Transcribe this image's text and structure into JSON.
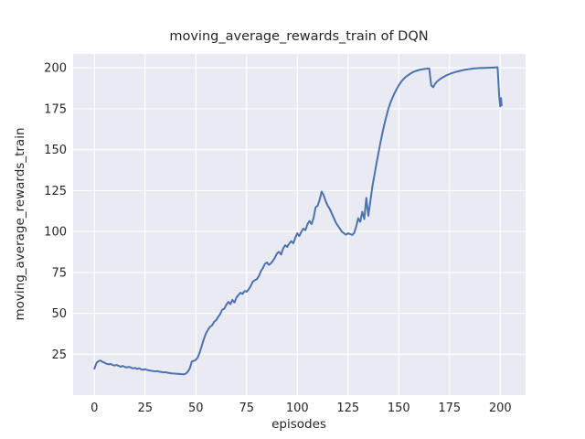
{
  "figure": {
    "background": "#ffffff"
  },
  "chart_data": {
    "type": "line",
    "title": "moving_average_rewards_train of DQN",
    "xlabel": "episodes",
    "ylabel": "moving_average_rewards_train",
    "x_ticks": [
      0,
      25,
      50,
      75,
      100,
      125,
      150,
      175,
      200
    ],
    "y_ticks": [
      25,
      50,
      75,
      100,
      125,
      150,
      175,
      200
    ],
    "xlim": [
      -10.5,
      212.5
    ],
    "ylim": [
      0,
      208.5
    ],
    "grid": true,
    "legend_position": "none",
    "style": {
      "axes_background": "#eaeaf2",
      "grid_color": "#ffffff",
      "line_color": "#4c72b0",
      "text_color": "#262626"
    },
    "series": [
      {
        "name": "moving_average_rewards_train",
        "points": [
          [
            0,
            16.2
          ],
          [
            1,
            19.6
          ],
          [
            2,
            20.8
          ],
          [
            3,
            21.1
          ],
          [
            4,
            20.3
          ],
          [
            5,
            19.8
          ],
          [
            6,
            19.1
          ],
          [
            7,
            18.8
          ],
          [
            8,
            19.1
          ],
          [
            9,
            18.4
          ],
          [
            10,
            18.1
          ],
          [
            11,
            18.4
          ],
          [
            12,
            17.8
          ],
          [
            13,
            17.4
          ],
          [
            14,
            17.8
          ],
          [
            15,
            17.2
          ],
          [
            16,
            16.9
          ],
          [
            17,
            17.3
          ],
          [
            18,
            16.8
          ],
          [
            19,
            16.3
          ],
          [
            20,
            16.6
          ],
          [
            21,
            16.0
          ],
          [
            22,
            16.4
          ],
          [
            23,
            15.8
          ],
          [
            24,
            15.5
          ],
          [
            25,
            15.8
          ],
          [
            26,
            15.3
          ],
          [
            27,
            15.1
          ],
          [
            28,
            14.9
          ],
          [
            29,
            14.7
          ],
          [
            30,
            14.5
          ],
          [
            31,
            14.7
          ],
          [
            32,
            14.3
          ],
          [
            33,
            14.1
          ],
          [
            34,
            13.9
          ],
          [
            35,
            14.0
          ],
          [
            36,
            13.7
          ],
          [
            37,
            13.5
          ],
          [
            38,
            13.3
          ],
          [
            39,
            13.2
          ],
          [
            40,
            13.1
          ],
          [
            41,
            13.0
          ],
          [
            42,
            12.9
          ],
          [
            43,
            12.8
          ],
          [
            44,
            12.7
          ],
          [
            45,
            13.1
          ],
          [
            46,
            14.3
          ],
          [
            47,
            16.3
          ],
          [
            48,
            20.5
          ],
          [
            49,
            20.9
          ],
          [
            50,
            21.6
          ],
          [
            51,
            23.2
          ],
          [
            52,
            26.5
          ],
          [
            53,
            30.5
          ],
          [
            54,
            34.5
          ],
          [
            55,
            37.8
          ],
          [
            56,
            40.0
          ],
          [
            57,
            41.8
          ],
          [
            58,
            42.6
          ],
          [
            59,
            44.8
          ],
          [
            60,
            45.8
          ],
          [
            61,
            47.8
          ],
          [
            62,
            49.6
          ],
          [
            63,
            52.2
          ],
          [
            64,
            52.8
          ],
          [
            65,
            55.2
          ],
          [
            66,
            57.0
          ],
          [
            67,
            55.6
          ],
          [
            68,
            58.2
          ],
          [
            69,
            56.6
          ],
          [
            70,
            59.6
          ],
          [
            71,
            61.2
          ],
          [
            72,
            62.6
          ],
          [
            73,
            61.8
          ],
          [
            74,
            63.6
          ],
          [
            75,
            63.2
          ],
          [
            76,
            64.6
          ],
          [
            77,
            66.6
          ],
          [
            78,
            69.2
          ],
          [
            79,
            70.2
          ],
          [
            80,
            70.8
          ],
          [
            81,
            72.6
          ],
          [
            82,
            75.6
          ],
          [
            83,
            77.6
          ],
          [
            84,
            80.1
          ],
          [
            85,
            81.1
          ],
          [
            86,
            79.6
          ],
          [
            87,
            80.6
          ],
          [
            88,
            82.1
          ],
          [
            89,
            84.1
          ],
          [
            90,
            86.6
          ],
          [
            91,
            87.6
          ],
          [
            92,
            85.9
          ],
          [
            93,
            89.6
          ],
          [
            94,
            91.6
          ],
          [
            95,
            90.6
          ],
          [
            96,
            92.6
          ],
          [
            97,
            94.1
          ],
          [
            98,
            92.8
          ],
          [
            99,
            96.1
          ],
          [
            100,
            98.9
          ],
          [
            101,
            97.2
          ],
          [
            102,
            99.9
          ],
          [
            103,
            101.7
          ],
          [
            104,
            100.8
          ],
          [
            105,
            104.5
          ],
          [
            106,
            106.4
          ],
          [
            107,
            104.5
          ],
          [
            108,
            108.2
          ],
          [
            109,
            114.8
          ],
          [
            110,
            115.7
          ],
          [
            111,
            119.4
          ],
          [
            112,
            124.4
          ],
          [
            113,
            122.1
          ],
          [
            114,
            118.4
          ],
          [
            115,
            115.7
          ],
          [
            116,
            113.8
          ],
          [
            117,
            111.0
          ],
          [
            118,
            108.2
          ],
          [
            119,
            105.4
          ],
          [
            120,
            103.5
          ],
          [
            121,
            101.7
          ],
          [
            122,
            99.8
          ],
          [
            123,
            98.9
          ],
          [
            124,
            98.0
          ],
          [
            125,
            98.9
          ],
          [
            126,
            98.4
          ],
          [
            127,
            97.9
          ],
          [
            128,
            99.0
          ],
          [
            129,
            103.0
          ],
          [
            130,
            108.1
          ],
          [
            131,
            105.9
          ],
          [
            132,
            112.0
          ],
          [
            133,
            107.6
          ],
          [
            134,
            120.5
          ],
          [
            135,
            109.6
          ],
          [
            136,
            118.5
          ],
          [
            137,
            127.5
          ],
          [
            138,
            134.5
          ],
          [
            139,
            141.5
          ],
          [
            140,
            148.0
          ],
          [
            141,
            154.5
          ],
          [
            142,
            160.5
          ],
          [
            143,
            166.0
          ],
          [
            144,
            171.0
          ],
          [
            145,
            175.5
          ],
          [
            146,
            179.0
          ],
          [
            147,
            182.0
          ],
          [
            148,
            184.8
          ],
          [
            149,
            187.2
          ],
          [
            150,
            189.3
          ],
          [
            151,
            191.2
          ],
          [
            152,
            192.7
          ],
          [
            153,
            194.0
          ],
          [
            154,
            195.0
          ],
          [
            155,
            195.9
          ],
          [
            156,
            196.7
          ],
          [
            157,
            197.4
          ],
          [
            158,
            197.9
          ],
          [
            159,
            198.3
          ],
          [
            160,
            198.7
          ],
          [
            161,
            199.0
          ],
          [
            162,
            199.2
          ],
          [
            163,
            199.4
          ],
          [
            164,
            199.5
          ],
          [
            165,
            199.6
          ],
          [
            166,
            189.3
          ],
          [
            167,
            188.2
          ],
          [
            168,
            190.5
          ],
          [
            169,
            191.8
          ],
          [
            170,
            192.8
          ],
          [
            171,
            193.7
          ],
          [
            172,
            194.4
          ],
          [
            173,
            195.1
          ],
          [
            174,
            195.7
          ],
          [
            175,
            196.2
          ],
          [
            176,
            196.7
          ],
          [
            177,
            197.1
          ],
          [
            178,
            197.5
          ],
          [
            179,
            197.8
          ],
          [
            180,
            198.1
          ],
          [
            181,
            198.4
          ],
          [
            182,
            198.7
          ],
          [
            183,
            198.9
          ],
          [
            184,
            199.1
          ],
          [
            185,
            199.3
          ],
          [
            186,
            199.5
          ],
          [
            187,
            199.6
          ],
          [
            188,
            199.7
          ],
          [
            189,
            199.8
          ],
          [
            190,
            199.9
          ],
          [
            191,
            199.9
          ],
          [
            192,
            200.0
          ],
          [
            193,
            200.0
          ],
          [
            194,
            200.1
          ],
          [
            195,
            200.1
          ],
          [
            196,
            200.2
          ],
          [
            197,
            200.2
          ],
          [
            198,
            200.3
          ],
          [
            198.7,
            200.3
          ],
          [
            199.5,
            183.0
          ],
          [
            200.0,
            176.5
          ],
          [
            200.4,
            181.5
          ],
          [
            200.7,
            177.0
          ]
        ]
      }
    ]
  }
}
